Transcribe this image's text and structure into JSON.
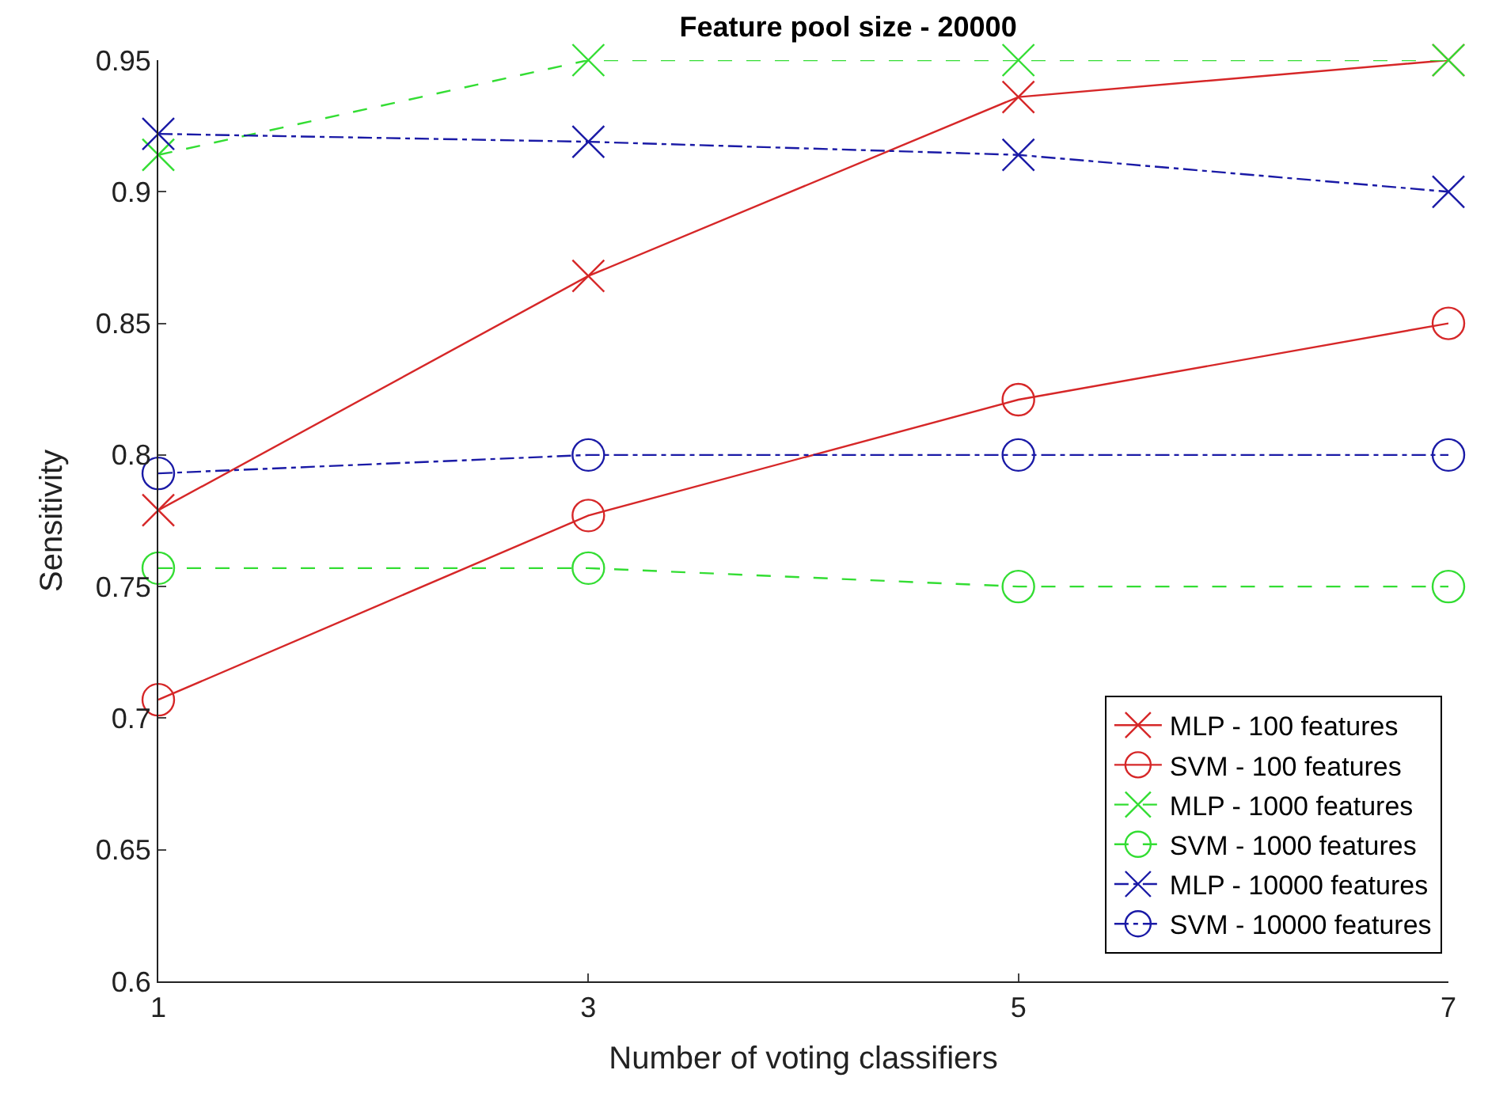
{
  "chart_data": {
    "type": "line",
    "title": "Feature pool size - 20000",
    "xlabel": "Number of voting classifiers",
    "ylabel": "Sensitivity",
    "x": [
      1,
      3,
      5,
      7
    ],
    "xlim": [
      1,
      7
    ],
    "xticks": [
      1,
      3,
      5,
      7
    ],
    "ylim": [
      0.6,
      0.95
    ],
    "yticks": [
      0.6,
      0.65,
      0.7,
      0.75,
      0.8,
      0.85,
      0.9,
      0.95
    ],
    "legend": "bottom right",
    "series": [
      {
        "name": "MLP - 100 features",
        "color": "#d62728",
        "marker": "cross",
        "line_style": "solid",
        "values": [
          0.779,
          0.868,
          0.936,
          0.95
        ]
      },
      {
        "name": "SVM - 100 features",
        "color": "#d62728",
        "marker": "circle",
        "line_style": "solid",
        "values": [
          0.707,
          0.777,
          0.821,
          0.85
        ]
      },
      {
        "name": "MLP - 1000 features",
        "color": "#33dd33",
        "marker": "cross",
        "line_style": "dashed",
        "values": [
          0.914,
          0.95,
          0.95,
          0.95
        ]
      },
      {
        "name": "SVM - 1000 features",
        "color": "#33dd33",
        "marker": "circle",
        "line_style": "dashed",
        "values": [
          0.757,
          0.757,
          0.75,
          0.75
        ]
      },
      {
        "name": "MLP - 10000 features",
        "color": "#1a1aa6",
        "marker": "cross",
        "line_style": "dashdot",
        "values": [
          0.922,
          0.919,
          0.914,
          0.9
        ]
      },
      {
        "name": "SVM - 10000 features",
        "color": "#1a1aa6",
        "marker": "circle",
        "line_style": "dashdot",
        "values": [
          0.793,
          0.8,
          0.8,
          0.8
        ]
      }
    ]
  }
}
